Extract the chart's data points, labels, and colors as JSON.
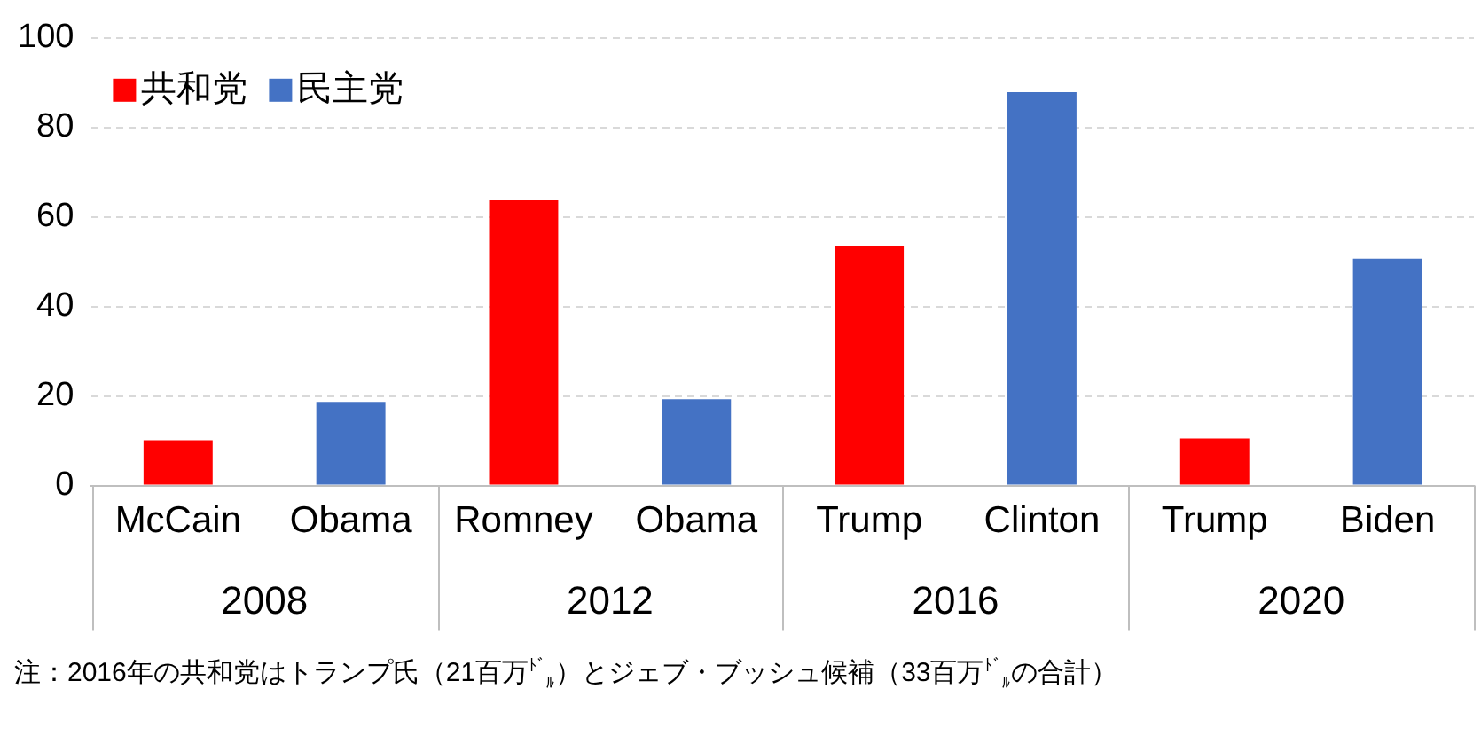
{
  "chart_data": {
    "type": "bar",
    "categories": [
      "McCain",
      "Obama",
      "Romney",
      "Obama",
      "Trump",
      "Clinton",
      "Trump",
      "Biden"
    ],
    "series": [
      {
        "name": "共和党",
        "color": "#ff0000",
        "values": [
          10.1,
          null,
          63.9,
          null,
          53.6,
          null,
          10.5,
          null
        ]
      },
      {
        "name": "民主党",
        "color": "#4472c4",
        "values": [
          null,
          18.7,
          null,
          19.3,
          null,
          87.9,
          null,
          50.7
        ]
      }
    ],
    "ylim": [
      0,
      100
    ],
    "yticks": [
      0,
      20,
      40,
      60,
      80,
      100
    ],
    "grid": "y",
    "legend": "top left",
    "annotations": [
      "2008",
      "2012",
      "2016",
      "2020",
      "注：2016年の共和党はトランプ氏（21百万$^{ﾄﾞ}$$_{ﾙ}$）とジェブ・ブッシュ候補（33百万$^{ﾄﾞ}$$_{ﾙ}$の合計）"
    ]
  }
}
